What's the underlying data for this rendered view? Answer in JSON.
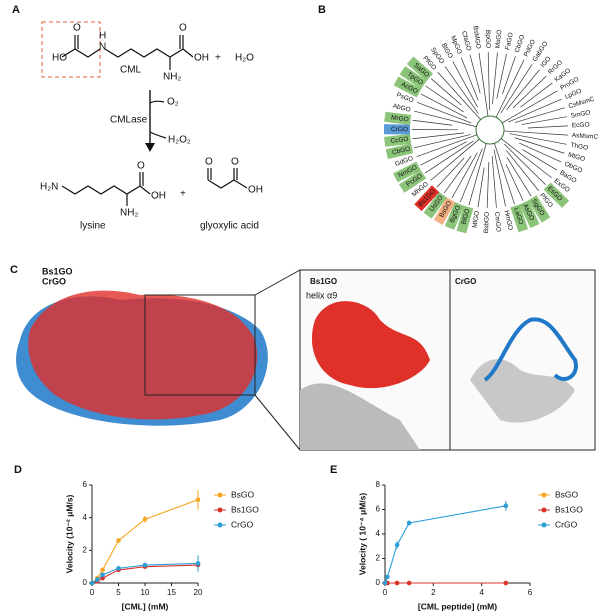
{
  "panel_labels": [
    "A",
    "B",
    "C",
    "D",
    "E"
  ],
  "scheme": {
    "cml_atoms": [
      "HO",
      "O",
      "N",
      "H",
      "OH",
      "O",
      "NH₂"
    ],
    "cml": "CML",
    "plus_1": "+",
    "water": "H₂O",
    "oxygen": "O₂",
    "enzyme": "CMLase",
    "peroxide": "H₂O₂",
    "lysine_atoms": [
      "H₂N",
      "O",
      "OH",
      "NH₂"
    ],
    "lysine": "lysine",
    "plus_2": "+",
    "glyoxylic_atoms": [
      "O",
      "O",
      "OH"
    ],
    "glyoxylic": "glyoxylic acid"
  },
  "tree": {
    "leaves": [
      {
        "label": "GdGO"
      },
      {
        "label": "CbGO",
        "highlight": "#8cc47a"
      },
      {
        "label": "CcGO",
        "highlight": "#8cc47a"
      },
      {
        "label": "CrGO",
        "highlight": "#5b9bd5"
      },
      {
        "label": "MrGO",
        "highlight": "#8cc47a"
      },
      {
        "label": "AbGO"
      },
      {
        "label": "PsGO"
      },
      {
        "label": "AcGO",
        "highlight": "#8cc47a"
      },
      {
        "label": "TpGO",
        "highlight": "#8cc47a"
      },
      {
        "label": "SaGO",
        "highlight": "#8cc47a"
      },
      {
        "label": "PfGO"
      },
      {
        "label": "SpGO"
      },
      {
        "label": "BtGO"
      },
      {
        "label": "MpGO"
      },
      {
        "label": "CfaGO"
      },
      {
        "label": "BsMGO"
      },
      {
        "label": "BpGO"
      },
      {
        "label": "MsGO"
      },
      {
        "label": "FaGO"
      },
      {
        "label": "CbGO"
      },
      {
        "label": "PdGO"
      },
      {
        "label": "GabGO"
      },
      {
        "label": "IGO"
      },
      {
        "label": "RrGO"
      },
      {
        "label": "KaGO"
      },
      {
        "label": "ProGO"
      },
      {
        "label": "LpGO"
      },
      {
        "label": "CsMsmC"
      },
      {
        "label": "SmGO"
      },
      {
        "label": "EcGO"
      },
      {
        "label": "AsMsmC"
      },
      {
        "label": "ThGO"
      },
      {
        "label": "MtGO"
      },
      {
        "label": "ObGO"
      },
      {
        "label": "BaGO"
      },
      {
        "label": "ExGO"
      },
      {
        "label": "EsGO",
        "highlight": "#8cc47a"
      },
      {
        "label": "PfGO"
      },
      {
        "label": "SgGO",
        "highlight": "#8cc47a"
      },
      {
        "label": "AsGO",
        "highlight": "#8cc47a"
      },
      {
        "label": "LaGO",
        "highlight": "#8cc47a"
      },
      {
        "label": "HmGO"
      },
      {
        "label": "CmGO"
      },
      {
        "label": "BsbGO"
      },
      {
        "label": "MlGO"
      },
      {
        "label": "BlGO",
        "highlight": "#8cc47a"
      },
      {
        "label": "BgGO",
        "highlight": "#8cc47a"
      },
      {
        "label": "BsGO",
        "highlight": "#f4b183"
      },
      {
        "label": "UsGO",
        "highlight": "#8cc47a"
      },
      {
        "label": "Bs1GO",
        "highlight": "#e0302a"
      },
      {
        "label": "MhGO"
      },
      {
        "label": "PcGO",
        "highlight": "#8cc47a"
      },
      {
        "label": "NmGO",
        "highlight": "#8cc47a"
      }
    ]
  },
  "structure": {
    "legend": [
      {
        "name": "Bs1GO",
        "color": "#e0302a"
      },
      {
        "name": "CrGO",
        "color": "#1f78c8"
      }
    ],
    "inset_left_title": "Bs1GO",
    "inset_left_note": "helix α9",
    "inset_right_title": "CrGO"
  },
  "chart_data": [
    {
      "type": "line",
      "x_label": "[CML] (mM)",
      "y_label": "Velocity (10⁻² μM/s)",
      "x": [
        0,
        1,
        2,
        5,
        10,
        20
      ],
      "xlim": [
        0,
        20
      ],
      "xticks": [
        0,
        5,
        10,
        15,
        20
      ],
      "ylim": [
        0,
        6
      ],
      "yticks": [
        0,
        2,
        4,
        6
      ],
      "series": [
        {
          "name": "BsGO",
          "color": "#f5a623",
          "values": [
            0,
            0.3,
            0.8,
            2.6,
            3.9,
            5.1
          ],
          "errors": [
            0,
            0.05,
            0.05,
            0.1,
            0.2,
            0.6
          ]
        },
        {
          "name": "Bs1GO",
          "color": "#d9342b",
          "values": [
            0,
            0.1,
            0.3,
            0.8,
            1.0,
            1.1
          ],
          "errors": [
            0,
            0.05,
            0.05,
            0.1,
            0.1,
            0.3
          ]
        },
        {
          "name": "CrGO",
          "color": "#2a9fd6",
          "values": [
            0,
            0.2,
            0.5,
            0.9,
            1.1,
            1.2
          ],
          "errors": [
            0,
            0.05,
            0.05,
            0.1,
            0.1,
            0.5
          ]
        }
      ]
    },
    {
      "type": "line",
      "x_label": "[CML peptide] (mM)",
      "y_label": "Velocity ( 10⁻⁴ μM/s)",
      "x": [
        0,
        0.1,
        0.5,
        1,
        5
      ],
      "xlim": [
        0,
        6
      ],
      "xticks": [
        0,
        2,
        4,
        6
      ],
      "ylim": [
        0,
        8
      ],
      "yticks": [
        0,
        2,
        4,
        6,
        8
      ],
      "series": [
        {
          "name": "BsGO",
          "color": "#f5a623",
          "values": [
            0,
            0,
            0,
            0,
            0
          ],
          "errors": [
            0,
            0,
            0,
            0,
            0
          ]
        },
        {
          "name": "Bs1GO",
          "color": "#d9342b",
          "values": [
            0,
            0,
            0,
            0,
            0
          ],
          "errors": [
            0,
            0,
            0,
            0,
            0
          ]
        },
        {
          "name": "CrGO",
          "color": "#2a9fd6",
          "values": [
            0,
            0.5,
            3.1,
            4.9,
            6.3
          ],
          "errors": [
            0,
            0.1,
            0.3,
            0.2,
            0.4
          ]
        }
      ]
    }
  ]
}
